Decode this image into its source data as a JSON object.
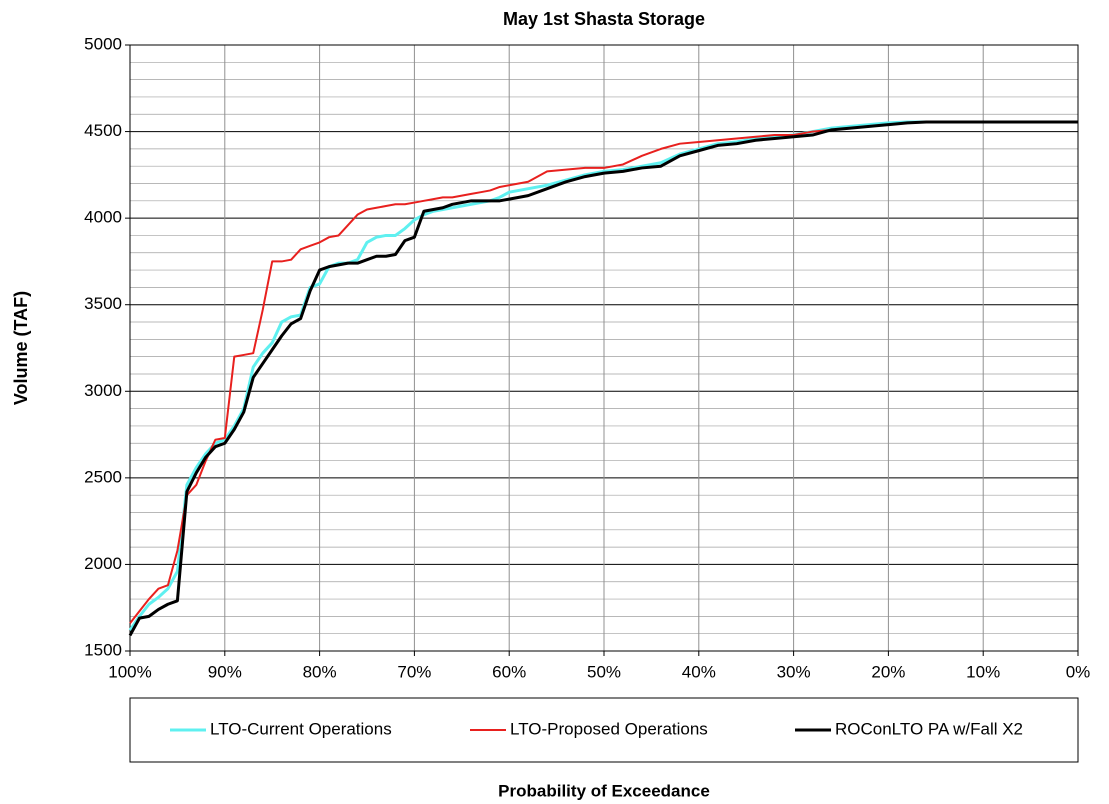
{
  "chart_data": {
    "type": "line",
    "title": "May 1st Shasta Storage",
    "x_label": "Probability of Exceedance",
    "y_label": "Volume (TAF)",
    "xlim": [
      100,
      0
    ],
    "ylim": [
      1500,
      5000
    ],
    "xticks": [
      {
        "value": 100,
        "label": "100%"
      },
      {
        "value": 90,
        "label": "90%"
      },
      {
        "value": 80,
        "label": "80%"
      },
      {
        "value": 70,
        "label": "70%"
      },
      {
        "value": 60,
        "label": "60%"
      },
      {
        "value": 50,
        "label": "50%"
      },
      {
        "value": 40,
        "label": "40%"
      },
      {
        "value": 30,
        "label": "30%"
      },
      {
        "value": 20,
        "label": "20%"
      },
      {
        "value": 10,
        "label": "10%"
      },
      {
        "value": 0,
        "label": "0%"
      }
    ],
    "yticks": [
      1500,
      2000,
      2500,
      3000,
      3500,
      4000,
      4500,
      5000
    ],
    "yminor_ticks": [
      1600,
      1700,
      1800,
      1900,
      2100,
      2200,
      2300,
      2400,
      2600,
      2700,
      2800,
      2900,
      3100,
      3200,
      3300,
      3400,
      3600,
      3700,
      3800,
      3900,
      4100,
      4200,
      4300,
      4400,
      4600,
      4700,
      4800,
      4900
    ],
    "grid": true,
    "legend": "bottom",
    "x": [
      100,
      99,
      98,
      97,
      96,
      95,
      94,
      93,
      92,
      91,
      90,
      89,
      88,
      87,
      86,
      85,
      84,
      83,
      82,
      81,
      80,
      79,
      78,
      77,
      76,
      75,
      74,
      73,
      72,
      71,
      70,
      69,
      68,
      67,
      66,
      65,
      64,
      63,
      62,
      61,
      60,
      58,
      56,
      54,
      52,
      50,
      48,
      46,
      44,
      42,
      40,
      38,
      36,
      34,
      32,
      30,
      28,
      26,
      24,
      22,
      20,
      18,
      16,
      14,
      0
    ],
    "series": [
      {
        "name": "LTO-Current Operations",
        "color": "#5ff0f0",
        "width": 3,
        "values": [
          1620,
          1700,
          1770,
          1810,
          1860,
          1960,
          2460,
          2560,
          2640,
          2700,
          2720,
          2800,
          2900,
          3140,
          3220,
          3280,
          3400,
          3430,
          3440,
          3600,
          3620,
          3720,
          3740,
          3740,
          3760,
          3860,
          3890,
          3900,
          3900,
          3940,
          3990,
          4020,
          4040,
          4050,
          4060,
          4070,
          4080,
          4090,
          4100,
          4120,
          4150,
          4170,
          4190,
          4220,
          4250,
          4270,
          4280,
          4300,
          4320,
          4370,
          4400,
          4430,
          4440,
          4460,
          4470,
          4480,
          4500,
          4520,
          4530,
          4540,
          4550,
          4555,
          4555,
          4555,
          4555
        ]
      },
      {
        "name": "LTO-Proposed Operations",
        "color": "#e8201e",
        "width": 2,
        "values": [
          1660,
          1730,
          1800,
          1860,
          1880,
          2080,
          2400,
          2460,
          2600,
          2720,
          2730,
          3200,
          3210,
          3220,
          3470,
          3750,
          3750,
          3760,
          3820,
          3840,
          3860,
          3890,
          3900,
          3960,
          4020,
          4050,
          4060,
          4070,
          4080,
          4080,
          4090,
          4100,
          4110,
          4120,
          4120,
          4130,
          4140,
          4150,
          4160,
          4180,
          4190,
          4210,
          4270,
          4280,
          4290,
          4290,
          4310,
          4360,
          4400,
          4430,
          4440,
          4450,
          4460,
          4470,
          4480,
          4480,
          4500,
          4510,
          4520,
          4530,
          4540,
          4550,
          4555,
          4555,
          4555
        ]
      },
      {
        "name": "ROConLTO PA w/Fall X2",
        "color": "#000000",
        "width": 3,
        "values": [
          1590,
          1690,
          1700,
          1740,
          1770,
          1790,
          2420,
          2530,
          2620,
          2680,
          2700,
          2780,
          2880,
          3080,
          3160,
          3240,
          3320,
          3390,
          3420,
          3580,
          3700,
          3720,
          3730,
          3740,
          3740,
          3760,
          3780,
          3780,
          3790,
          3870,
          3890,
          4040,
          4050,
          4060,
          4080,
          4090,
          4100,
          4100,
          4100,
          4100,
          4110,
          4130,
          4170,
          4210,
          4240,
          4260,
          4270,
          4290,
          4300,
          4360,
          4390,
          4420,
          4430,
          4450,
          4460,
          4470,
          4480,
          4510,
          4520,
          4530,
          4540,
          4550,
          4555,
          4555,
          4555
        ]
      }
    ]
  }
}
